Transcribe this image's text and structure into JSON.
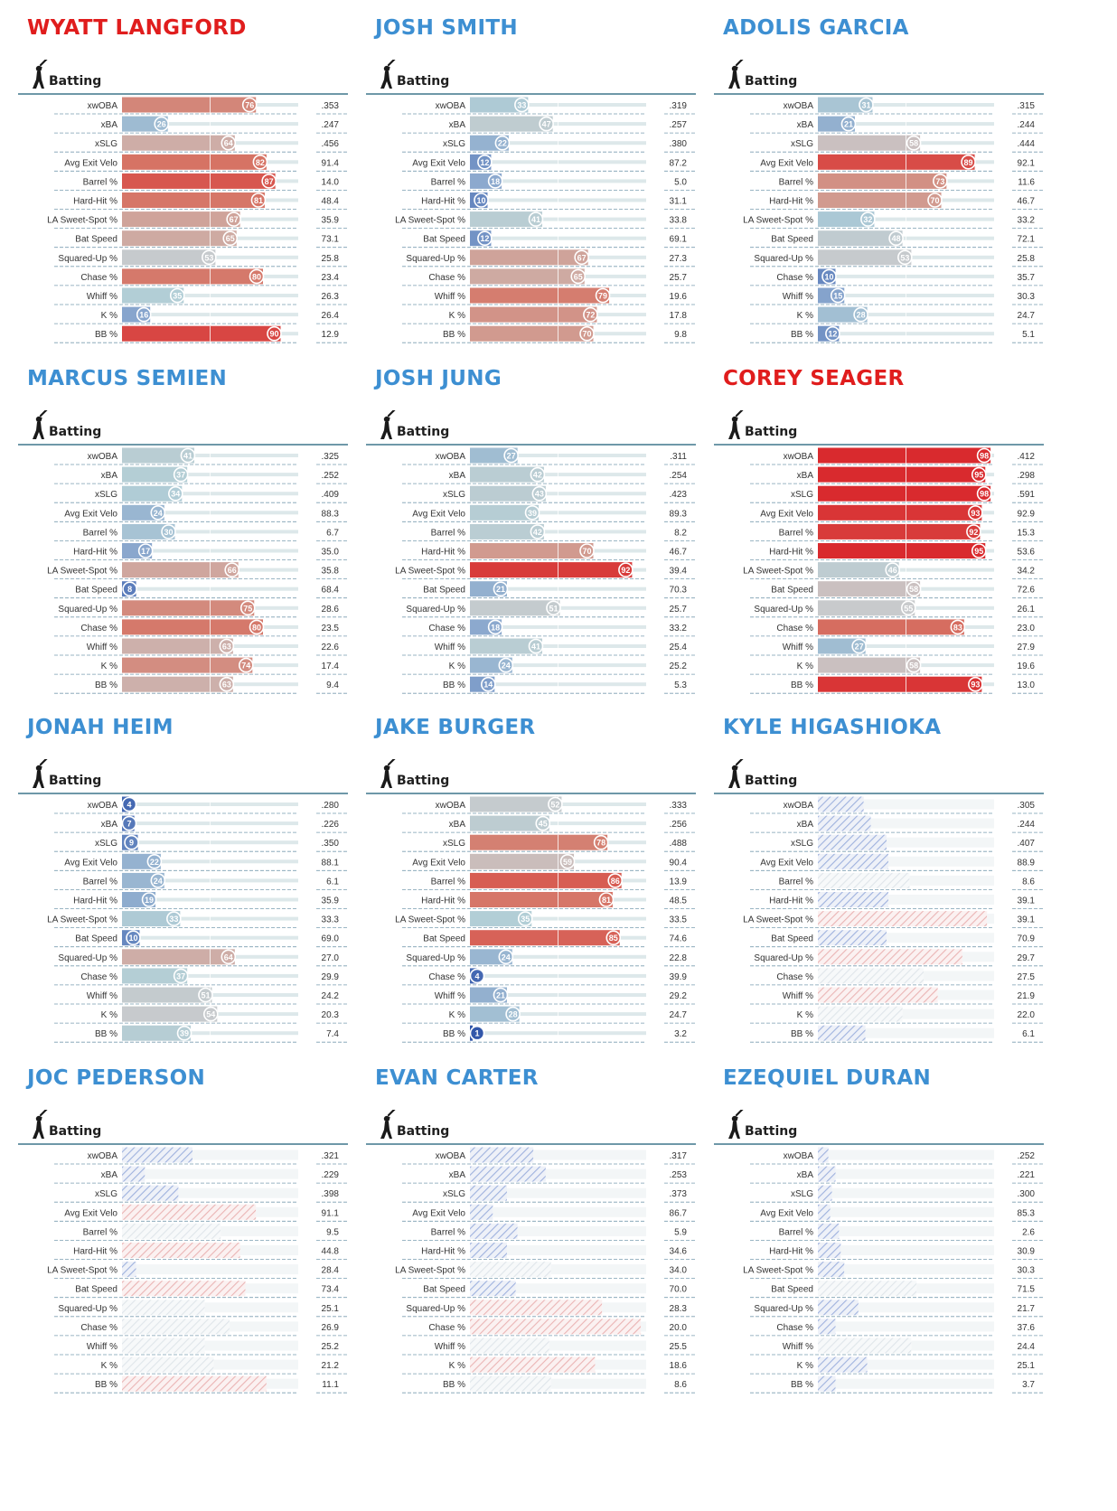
{
  "section_label": "Batting",
  "metrics": [
    "xwOBA",
    "xBA",
    "xSLG",
    "Avg Exit Velo",
    "Barrel %",
    "Hard-Hit %",
    "LA Sweet-Spot %",
    "Bat Speed",
    "Squared-Up %",
    "Chase %",
    "Whiff %",
    "K %",
    "BB %"
  ],
  "colors": {
    "red": "#d93a3a",
    "blue": "#2f58a8",
    "gray": "#c9cdd0",
    "name_red": "#e01d1d",
    "name_blue": "#3d8fd2"
  },
  "chart_data": [
    {
      "type": "bar",
      "player": "WYATT LANGFORD",
      "name_color": "red",
      "hatched": false,
      "percentiles": [
        76,
        26,
        64,
        82,
        87,
        81,
        67,
        65,
        53,
        80,
        35,
        16,
        90
      ],
      "values": [
        ".353",
        ".247",
        ".456",
        "91.4",
        "14.0",
        "48.4",
        "35.9",
        "73.1",
        "25.8",
        "23.4",
        "26.3",
        "26.4",
        "12.9"
      ]
    },
    {
      "type": "bar",
      "player": "JOSH SMITH",
      "name_color": "blue",
      "hatched": false,
      "percentiles": [
        33,
        47,
        22,
        12,
        18,
        10,
        41,
        12,
        67,
        65,
        79,
        72,
        70
      ],
      "values": [
        ".319",
        ".257",
        ".380",
        "87.2",
        "5.0",
        "31.1",
        "33.8",
        "69.1",
        "27.3",
        "25.7",
        "19.6",
        "17.8",
        "9.8"
      ]
    },
    {
      "type": "bar",
      "player": "ADOLIS GARCIA",
      "name_color": "blue",
      "hatched": false,
      "percentiles": [
        31,
        21,
        58,
        89,
        73,
        70,
        32,
        48,
        53,
        10,
        15,
        28,
        12
      ],
      "values": [
        ".315",
        ".244",
        ".444",
        "92.1",
        "11.6",
        "46.7",
        "33.2",
        "72.1",
        "25.8",
        "35.7",
        "30.3",
        "24.7",
        "5.1"
      ]
    },
    {
      "type": "bar",
      "player": "MARCUS SEMIEN",
      "name_color": "blue",
      "hatched": false,
      "percentiles": [
        41,
        37,
        34,
        24,
        30,
        17,
        66,
        8,
        75,
        80,
        63,
        74,
        63
      ],
      "values": [
        ".325",
        ".252",
        ".409",
        "88.3",
        "6.7",
        "35.0",
        "35.8",
        "68.4",
        "28.6",
        "23.5",
        "22.6",
        "17.4",
        "9.4"
      ]
    },
    {
      "type": "bar",
      "player": "JOSH JUNG",
      "name_color": "blue",
      "hatched": false,
      "percentiles": [
        27,
        42,
        43,
        39,
        42,
        70,
        92,
        21,
        51,
        18,
        41,
        24,
        14
      ],
      "values": [
        ".311",
        ".254",
        ".423",
        "89.3",
        "8.2",
        "46.7",
        "39.4",
        "70.3",
        "25.7",
        "33.2",
        "25.4",
        "25.2",
        "5.3"
      ]
    },
    {
      "type": "bar",
      "player": "COREY SEAGER",
      "name_color": "red",
      "hatched": false,
      "percentiles": [
        98,
        95,
        98,
        93,
        92,
        95,
        46,
        58,
        55,
        83,
        27,
        58,
        93
      ],
      "values": [
        ".412",
        ".298",
        ".591",
        "92.9",
        "15.3",
        "53.6",
        "34.2",
        "72.6",
        "26.1",
        "23.0",
        "27.9",
        "19.6",
        "13.0"
      ]
    },
    {
      "type": "bar",
      "player": "JONAH HEIM",
      "name_color": "blue",
      "hatched": false,
      "percentiles": [
        4,
        7,
        9,
        22,
        24,
        19,
        33,
        10,
        64,
        37,
        51,
        54,
        39
      ],
      "values": [
        ".280",
        ".226",
        ".350",
        "88.1",
        "6.1",
        "35.9",
        "33.3",
        "69.0",
        "27.0",
        "29.9",
        "24.2",
        "20.3",
        "7.4"
      ]
    },
    {
      "type": "bar",
      "player": "JAKE BURGER",
      "name_color": "blue",
      "hatched": false,
      "percentiles": [
        52,
        45,
        78,
        59,
        86,
        81,
        35,
        85,
        24,
        4,
        21,
        28,
        1
      ],
      "values": [
        ".333",
        ".256",
        ".488",
        "90.4",
        "13.9",
        "48.5",
        "33.5",
        "74.6",
        "22.8",
        "39.9",
        "29.2",
        "24.7",
        "3.2"
      ]
    },
    {
      "type": "bar",
      "player": "KYLE HIGASHIOKA",
      "name_color": "blue",
      "hatched": true,
      "percentiles": [
        26,
        30,
        39,
        40,
        52,
        40,
        96,
        39,
        82,
        60,
        68,
        48,
        27
      ],
      "values": [
        ".305",
        ".244",
        ".407",
        "88.9",
        "8.6",
        "39.1",
        "39.1",
        "70.9",
        "29.7",
        "27.5",
        "21.9",
        "22.0",
        "6.1"
      ]
    },
    {
      "type": "bar",
      "player": "JOC PEDERSON",
      "name_color": "blue",
      "hatched": true,
      "percentiles": [
        40,
        13,
        32,
        76,
        56,
        67,
        8,
        70,
        47,
        61,
        47,
        52,
        82
      ],
      "values": [
        ".321",
        ".229",
        ".398",
        "91.1",
        "9.5",
        "44.8",
        "28.4",
        "73.4",
        "25.1",
        "26.9",
        "25.2",
        "21.2",
        "11.1"
      ]
    },
    {
      "type": "bar",
      "player": "EVAN CARTER",
      "name_color": "blue",
      "hatched": true,
      "percentiles": [
        36,
        43,
        21,
        13,
        27,
        21,
        46,
        26,
        75,
        97,
        45,
        71,
        46
      ],
      "values": [
        ".317",
        ".253",
        ".373",
        "86.7",
        "5.9",
        "34.6",
        "34.0",
        "70.0",
        "28.3",
        "20.0",
        "25.5",
        "18.6",
        "8.6"
      ]
    },
    {
      "type": "bar",
      "player": "EZEQUIEL DURAN",
      "name_color": "blue",
      "hatched": true,
      "percentiles": [
        6,
        10,
        8,
        7,
        12,
        13,
        15,
        56,
        23,
        10,
        53,
        28,
        10
      ],
      "values": [
        ".252",
        ".221",
        ".300",
        "85.3",
        "2.6",
        "30.9",
        "30.3",
        "71.5",
        "21.7",
        "37.6",
        "24.4",
        "25.1",
        "3.7"
      ]
    }
  ]
}
